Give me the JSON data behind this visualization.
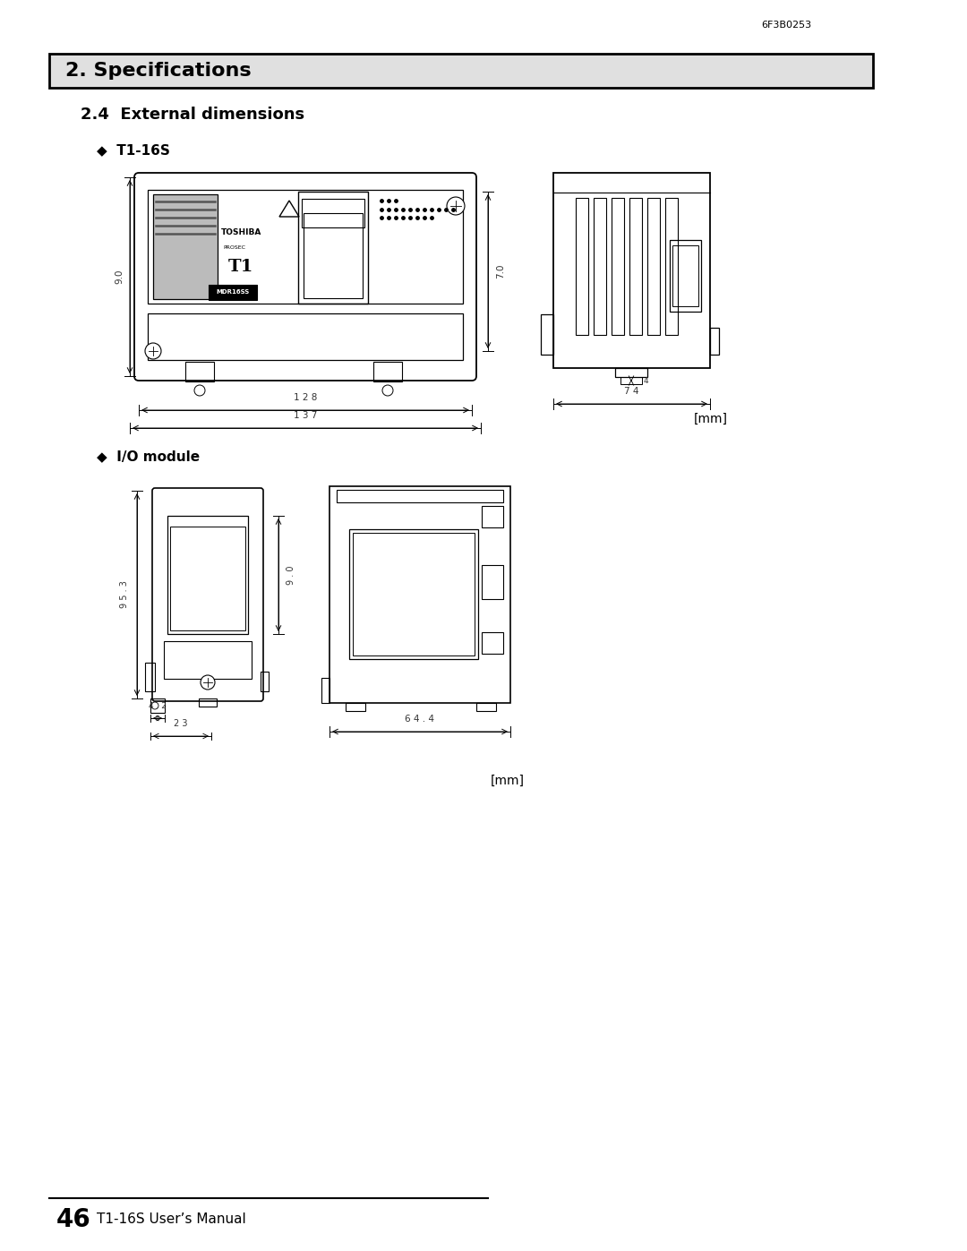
{
  "page_background": "#ffffff",
  "header_text": "6F3B0253",
  "section_title": "2. Specifications",
  "section_title_bg": "#e0e0e0",
  "subsection_title": "2.4  External dimensions",
  "bullet_t1_16s": "◆  T1-16S",
  "bullet_io_module": "◆  I/O module",
  "mm_label_1": "[mm]",
  "mm_label_2": "[mm]",
  "footer_page": "46",
  "footer_text": "T1-16S User’s Manual",
  "line_color": "#000000",
  "text_color": "#000000",
  "dim_color": "#333333"
}
